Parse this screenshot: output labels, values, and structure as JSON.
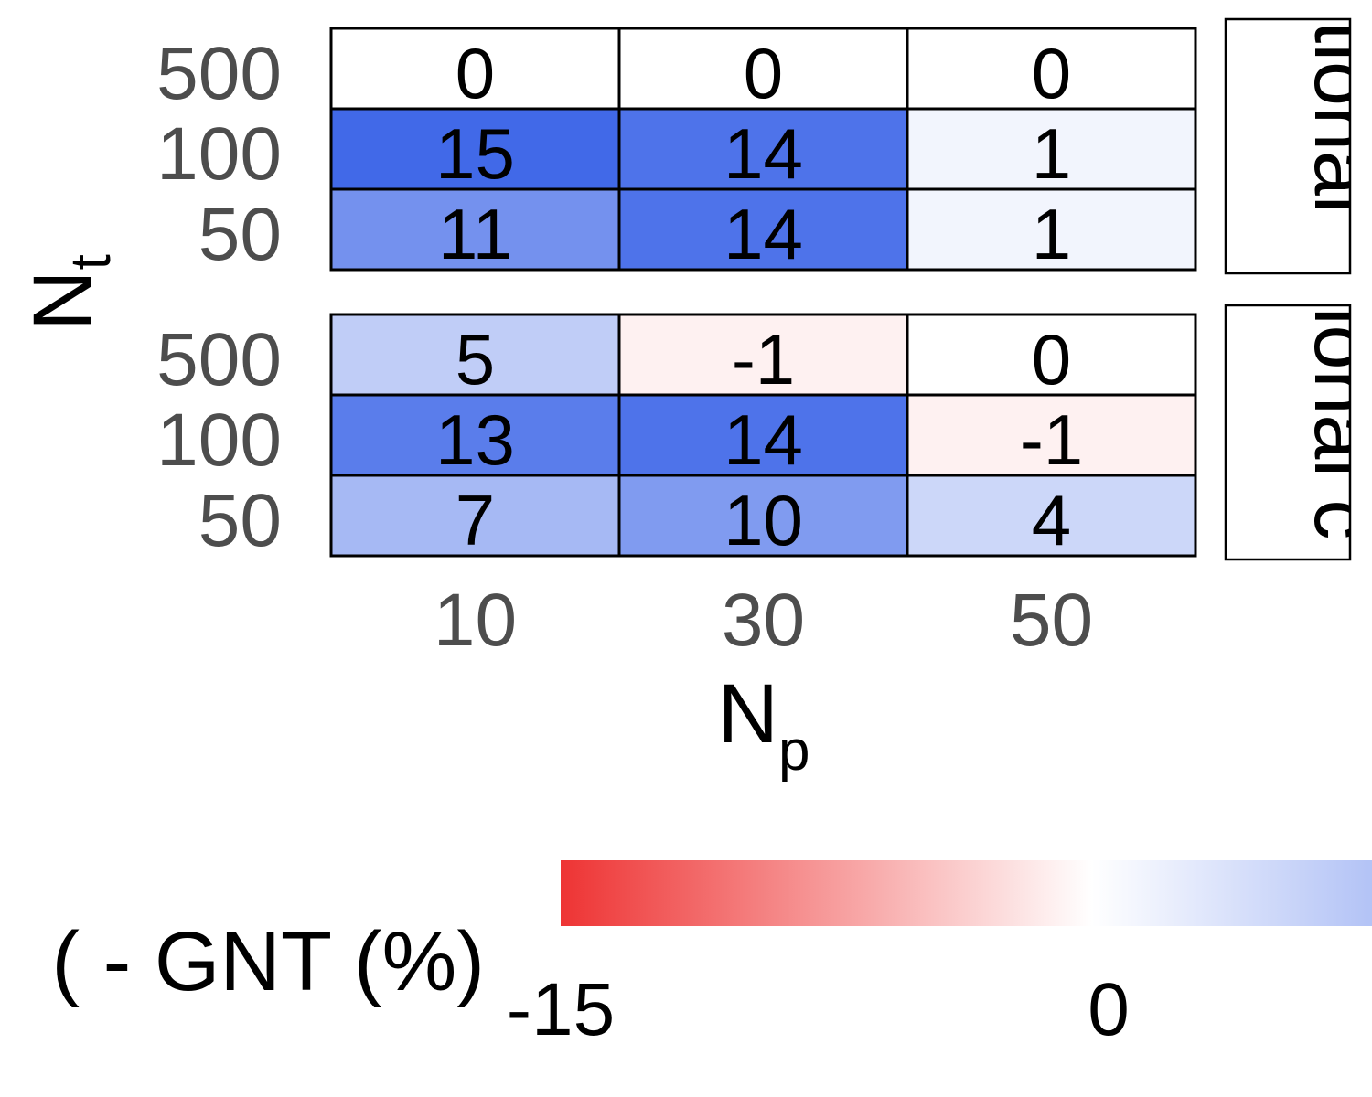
{
  "chart_data": {
    "type": "heatmap",
    "x_label": "N",
    "x_label_sub": "p",
    "y_label": "N",
    "y_label_sub": "t",
    "x_categories": [
      "10",
      "30",
      "50"
    ],
    "y_categories": [
      "500",
      "100",
      "50"
    ],
    "panels": [
      {
        "strip_label": "tional",
        "values": [
          [
            0,
            0,
            0
          ],
          [
            15,
            14,
            1
          ],
          [
            11,
            14,
            1
          ]
        ]
      },
      {
        "strip_label": "ional c",
        "values": [
          [
            5,
            -1,
            0
          ],
          [
            13,
            14,
            -1
          ],
          [
            7,
            10,
            4
          ]
        ]
      }
    ],
    "legend": {
      "title": "( - GNT (%)",
      "tick_labels": [
        "-15",
        "0"
      ],
      "range": [
        -15,
        15
      ],
      "colors": {
        "low": "#ee3434",
        "mid": "#ffffff",
        "high": "#4169e8"
      }
    }
  }
}
